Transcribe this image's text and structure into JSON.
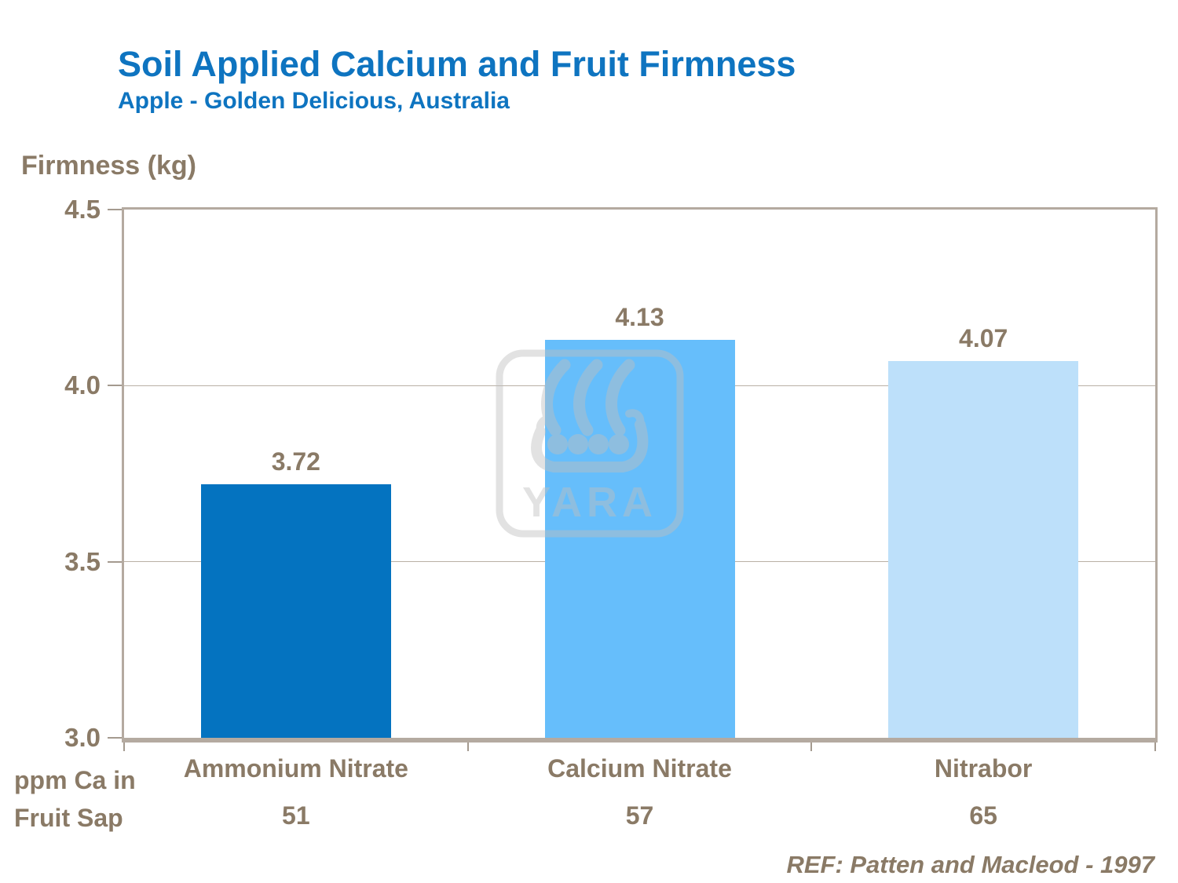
{
  "header": {
    "title": "Soil Applied Calcium and Fruit Firmness",
    "subtitle": "Apple - Golden Delicious, Australia"
  },
  "chart_data": {
    "type": "bar",
    "title": "Soil Applied Calcium and Fruit Firmness",
    "subtitle": "Apple - Golden Delicious, Australia",
    "ylabel": "Firmness (kg)",
    "xlabel_note_line1": "ppm Ca in",
    "xlabel_note_line2": "Fruit Sap",
    "ylim": [
      3.0,
      4.5
    ],
    "yticks": [
      4.5,
      4.0,
      3.5,
      3.0
    ],
    "ytick_labels": [
      "4.5",
      "4.0",
      "3.5",
      "3.0"
    ],
    "grid": "horizontal gridlines at 3.5 and 4.0",
    "legend": "none",
    "categories": [
      "Ammonium Nitrate",
      "Calcium Nitrate",
      "Nitrabor"
    ],
    "values": [
      3.72,
      4.13,
      4.07
    ],
    "value_labels": [
      "3.72",
      "4.13",
      "4.07"
    ],
    "ppm_ca_values": [
      "51",
      "57",
      "65"
    ],
    "bar_colors": [
      "#0473C0",
      "#66BEFB",
      "#BDE0FA"
    ],
    "reference": "REF: Patten and Macleod - 1997"
  },
  "watermark": {
    "label": "YARA",
    "description": "yara-viking-ship-logo"
  },
  "footer": {
    "reference": "REF: Patten and Macleod - 1997"
  },
  "colors": {
    "title_blue": "#0E74C0",
    "text_brown": "#8A7A66",
    "axis_frame": "#B4AAA0",
    "gridline": "#B9B0A5",
    "tick_mark": "#A49A8F",
    "watermark_gray": "#BFBFBF"
  }
}
